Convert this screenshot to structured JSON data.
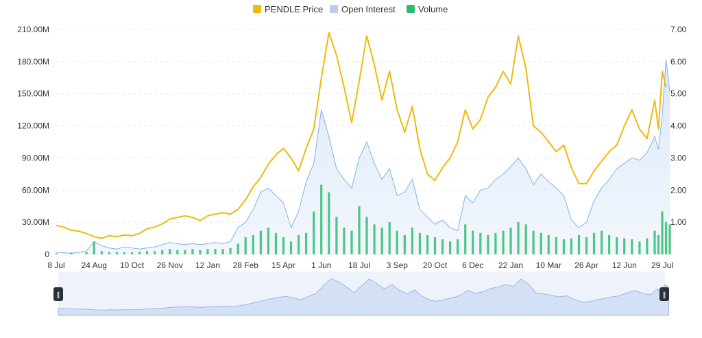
{
  "legend": [
    {
      "label": "PENDLE Price",
      "color": "#F0B90B"
    },
    {
      "label": "Open Interest",
      "color": "#B7CEF0"
    },
    {
      "label": "Volume",
      "color": "#2EBD6E"
    }
  ],
  "chart_data": {
    "type": "line",
    "title": "",
    "legend_position": "top-center",
    "grid": "horizontal dashed",
    "x_ticks": [
      "8 Jul",
      "24 Aug",
      "10 Oct",
      "26 Nov",
      "12 Jan",
      "28 Feb",
      "15 Apr",
      "1 Jun",
      "18 Jul",
      "3 Sep",
      "20 Oct",
      "6 Dec",
      "22 Jan",
      "10 Mar",
      "26 Apr",
      "12 Jun",
      "29 Jul"
    ],
    "y_left_ticks": [
      "0",
      "30.00M",
      "60.00M",
      "90.00M",
      "120.00M",
      "150.00M",
      "180.00M",
      "210.00M"
    ],
    "y_left_range": [
      0,
      210
    ],
    "y_right_ticks": [
      "1.00",
      "2.00",
      "3.00",
      "4.00",
      "5.00",
      "6.00",
      "7.00"
    ],
    "y_right_range": [
      0,
      7
    ],
    "x_index_range": [
      0,
      160
    ],
    "series": [
      {
        "name": "PENDLE Price",
        "axis": "right",
        "color": "#F0B90B",
        "points": [
          [
            0,
            0.9
          ],
          [
            2,
            0.85
          ],
          [
            4,
            0.75
          ],
          [
            6,
            0.72
          ],
          [
            8,
            0.65
          ],
          [
            10,
            0.55
          ],
          [
            12,
            0.5
          ],
          [
            14,
            0.58
          ],
          [
            16,
            0.55
          ],
          [
            18,
            0.6
          ],
          [
            20,
            0.58
          ],
          [
            22,
            0.65
          ],
          [
            24,
            0.8
          ],
          [
            26,
            0.85
          ],
          [
            28,
            0.95
          ],
          [
            30,
            1.1
          ],
          [
            32,
            1.15
          ],
          [
            34,
            1.2
          ],
          [
            36,
            1.15
          ],
          [
            38,
            1.05
          ],
          [
            40,
            1.2
          ],
          [
            42,
            1.25
          ],
          [
            44,
            1.3
          ],
          [
            46,
            1.25
          ],
          [
            48,
            1.4
          ],
          [
            50,
            1.7
          ],
          [
            52,
            2.1
          ],
          [
            54,
            2.4
          ],
          [
            56,
            2.8
          ],
          [
            58,
            3.1
          ],
          [
            60,
            3.3
          ],
          [
            62,
            3.0
          ],
          [
            64,
            2.6
          ],
          [
            66,
            3.3
          ],
          [
            68,
            3.9
          ],
          [
            70,
            5.5
          ],
          [
            72,
            6.9
          ],
          [
            74,
            6.2
          ],
          [
            76,
            5.2
          ],
          [
            78,
            4.1
          ],
          [
            80,
            5.4
          ],
          [
            82,
            6.8
          ],
          [
            84,
            5.9
          ],
          [
            86,
            4.8
          ],
          [
            88,
            5.7
          ],
          [
            90,
            4.5
          ],
          [
            92,
            3.8
          ],
          [
            94,
            4.6
          ],
          [
            96,
            3.3
          ],
          [
            98,
            2.5
          ],
          [
            100,
            2.3
          ],
          [
            102,
            2.7
          ],
          [
            104,
            3.0
          ],
          [
            106,
            3.5
          ],
          [
            108,
            4.5
          ],
          [
            110,
            3.9
          ],
          [
            112,
            4.2
          ],
          [
            114,
            4.9
          ],
          [
            116,
            5.2
          ],
          [
            118,
            5.7
          ],
          [
            120,
            5.3
          ],
          [
            122,
            6.8
          ],
          [
            124,
            5.8
          ],
          [
            126,
            4.0
          ],
          [
            128,
            3.8
          ],
          [
            130,
            3.5
          ],
          [
            132,
            3.2
          ],
          [
            134,
            3.4
          ],
          [
            136,
            2.7
          ],
          [
            138,
            2.2
          ],
          [
            140,
            2.2
          ],
          [
            142,
            2.6
          ],
          [
            144,
            2.9
          ],
          [
            146,
            3.2
          ],
          [
            148,
            3.4
          ],
          [
            150,
            4.0
          ],
          [
            152,
            4.5
          ],
          [
            154,
            3.9
          ],
          [
            156,
            3.6
          ],
          [
            158,
            4.8
          ],
          [
            159,
            3.9
          ],
          [
            160,
            5.7
          ],
          [
            161,
            5.2
          ]
        ]
      },
      {
        "name": "Open Interest",
        "axis": "left",
        "color": "#7FB3E8",
        "points": [
          [
            0,
            2
          ],
          [
            4,
            1
          ],
          [
            8,
            3
          ],
          [
            10,
            12
          ],
          [
            12,
            8
          ],
          [
            14,
            6
          ],
          [
            16,
            5
          ],
          [
            18,
            7
          ],
          [
            20,
            6
          ],
          [
            22,
            5
          ],
          [
            24,
            6
          ],
          [
            26,
            7
          ],
          [
            28,
            9
          ],
          [
            30,
            11
          ],
          [
            32,
            10
          ],
          [
            34,
            9
          ],
          [
            36,
            10
          ],
          [
            38,
            9
          ],
          [
            40,
            10
          ],
          [
            42,
            11
          ],
          [
            44,
            10
          ],
          [
            46,
            12
          ],
          [
            48,
            25
          ],
          [
            50,
            30
          ],
          [
            52,
            42
          ],
          [
            54,
            58
          ],
          [
            56,
            62
          ],
          [
            58,
            55
          ],
          [
            60,
            48
          ],
          [
            62,
            25
          ],
          [
            64,
            40
          ],
          [
            66,
            68
          ],
          [
            68,
            85
          ],
          [
            70,
            135
          ],
          [
            72,
            110
          ],
          [
            74,
            80
          ],
          [
            76,
            70
          ],
          [
            78,
            62
          ],
          [
            80,
            90
          ],
          [
            82,
            105
          ],
          [
            84,
            85
          ],
          [
            86,
            70
          ],
          [
            88,
            80
          ],
          [
            90,
            55
          ],
          [
            92,
            58
          ],
          [
            94,
            70
          ],
          [
            96,
            42
          ],
          [
            98,
            35
          ],
          [
            100,
            28
          ],
          [
            102,
            32
          ],
          [
            104,
            25
          ],
          [
            106,
            22
          ],
          [
            108,
            55
          ],
          [
            110,
            48
          ],
          [
            112,
            60
          ],
          [
            114,
            62
          ],
          [
            116,
            70
          ],
          [
            118,
            75
          ],
          [
            120,
            82
          ],
          [
            122,
            90
          ],
          [
            124,
            80
          ],
          [
            126,
            65
          ],
          [
            128,
            75
          ],
          [
            130,
            68
          ],
          [
            132,
            62
          ],
          [
            134,
            55
          ],
          [
            136,
            32
          ],
          [
            138,
            25
          ],
          [
            140,
            30
          ],
          [
            142,
            50
          ],
          [
            144,
            62
          ],
          [
            146,
            70
          ],
          [
            148,
            80
          ],
          [
            150,
            85
          ],
          [
            152,
            90
          ],
          [
            154,
            88
          ],
          [
            156,
            95
          ],
          [
            158,
            110
          ],
          [
            159,
            98
          ],
          [
            160,
            130
          ],
          [
            161,
            182
          ],
          [
            162,
            152
          ]
        ]
      },
      {
        "name": "Volume",
        "axis": "left",
        "color": "#2EBD6E",
        "points": [
          [
            0,
            1
          ],
          [
            4,
            1.5
          ],
          [
            8,
            2
          ],
          [
            10,
            12
          ],
          [
            12,
            3
          ],
          [
            14,
            2
          ],
          [
            16,
            2
          ],
          [
            18,
            2
          ],
          [
            20,
            2
          ],
          [
            22,
            2.5
          ],
          [
            24,
            3
          ],
          [
            26,
            3
          ],
          [
            28,
            4
          ],
          [
            30,
            5
          ],
          [
            32,
            4
          ],
          [
            34,
            4
          ],
          [
            36,
            5
          ],
          [
            38,
            4
          ],
          [
            40,
            5
          ],
          [
            42,
            5
          ],
          [
            44,
            5
          ],
          [
            46,
            6
          ],
          [
            48,
            10
          ],
          [
            50,
            16
          ],
          [
            52,
            18
          ],
          [
            54,
            22
          ],
          [
            56,
            25
          ],
          [
            58,
            20
          ],
          [
            60,
            16
          ],
          [
            62,
            12
          ],
          [
            64,
            18
          ],
          [
            66,
            20
          ],
          [
            68,
            40
          ],
          [
            70,
            65
          ],
          [
            72,
            58
          ],
          [
            74,
            35
          ],
          [
            76,
            25
          ],
          [
            78,
            22
          ],
          [
            80,
            45
          ],
          [
            82,
            35
          ],
          [
            84,
            28
          ],
          [
            86,
            25
          ],
          [
            88,
            30
          ],
          [
            90,
            22
          ],
          [
            92,
            18
          ],
          [
            94,
            25
          ],
          [
            96,
            20
          ],
          [
            98,
            18
          ],
          [
            100,
            16
          ],
          [
            102,
            14
          ],
          [
            104,
            12
          ],
          [
            106,
            14
          ],
          [
            108,
            28
          ],
          [
            110,
            22
          ],
          [
            112,
            20
          ],
          [
            114,
            18
          ],
          [
            116,
            20
          ],
          [
            118,
            22
          ],
          [
            120,
            25
          ],
          [
            122,
            30
          ],
          [
            124,
            28
          ],
          [
            126,
            22
          ],
          [
            128,
            20
          ],
          [
            130,
            18
          ],
          [
            132,
            16
          ],
          [
            134,
            14
          ],
          [
            136,
            15
          ],
          [
            138,
            18
          ],
          [
            140,
            16
          ],
          [
            142,
            20
          ],
          [
            144,
            22
          ],
          [
            146,
            18
          ],
          [
            148,
            16
          ],
          [
            150,
            15
          ],
          [
            152,
            14
          ],
          [
            154,
            12
          ],
          [
            156,
            15
          ],
          [
            158,
            22
          ],
          [
            159,
            18
          ],
          [
            160,
            40
          ],
          [
            161,
            30
          ],
          [
            162,
            28
          ]
        ]
      }
    ]
  }
}
